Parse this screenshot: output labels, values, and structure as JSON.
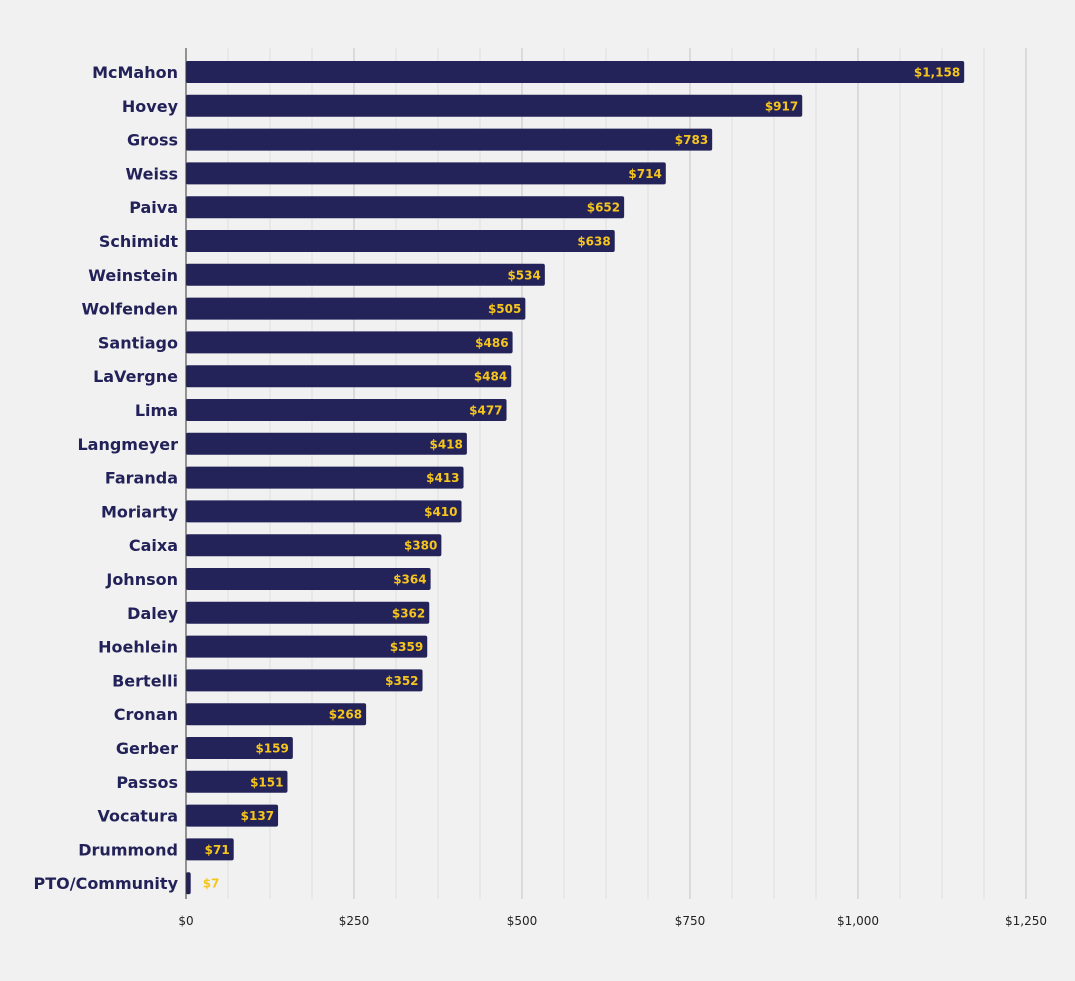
{
  "chart_data": {
    "type": "bar",
    "orientation": "horizontal",
    "title": "",
    "xlabel": "",
    "ylabel": "",
    "categories": [
      "McMahon",
      "Hovey",
      "Gross",
      "Weiss",
      "Paiva",
      "Schimidt",
      "Weinstein",
      "Wolfenden",
      "Santiago",
      "LaVergne",
      "Lima",
      "Langmeyer",
      "Faranda",
      "Moriarty",
      "Caixa",
      "Johnson",
      "Daley",
      "Hoehlein",
      "Bertelli",
      "Cronan",
      "Gerber",
      "Passos",
      "Vocatura",
      "Drummond",
      "PTO/Community"
    ],
    "values": [
      1158,
      917,
      783,
      714,
      652,
      638,
      534,
      505,
      486,
      484,
      477,
      418,
      413,
      410,
      380,
      364,
      362,
      359,
      352,
      268,
      159,
      151,
      137,
      71,
      7
    ],
    "data_labels": [
      "$1,158",
      "$917",
      "$783",
      "$714",
      "$652",
      "$638",
      "$534",
      "$505",
      "$486",
      "$484",
      "$477",
      "$418",
      "$413",
      "$410",
      "$380",
      "$364",
      "$362",
      "$359",
      "$352",
      "$268",
      "$159",
      "$151",
      "$137",
      "$71",
      "$7"
    ],
    "xlim": [
      0,
      1250
    ],
    "x_ticks": [
      0,
      250,
      500,
      750,
      1000,
      1250
    ],
    "x_tick_labels": [
      "$0",
      "$250",
      "$500",
      "$750",
      "$1,000",
      "$1,250"
    ],
    "x_minor_step": 62.5,
    "grid": true,
    "legend": "none",
    "colors": {
      "background": "#f1f1f1",
      "bar": "#232359",
      "value_label": "#f5c51d",
      "category_label": "#222259",
      "major_grid": "#c4c4c4",
      "minor_grid": "#e0e0e0",
      "axis": "#333333"
    }
  }
}
